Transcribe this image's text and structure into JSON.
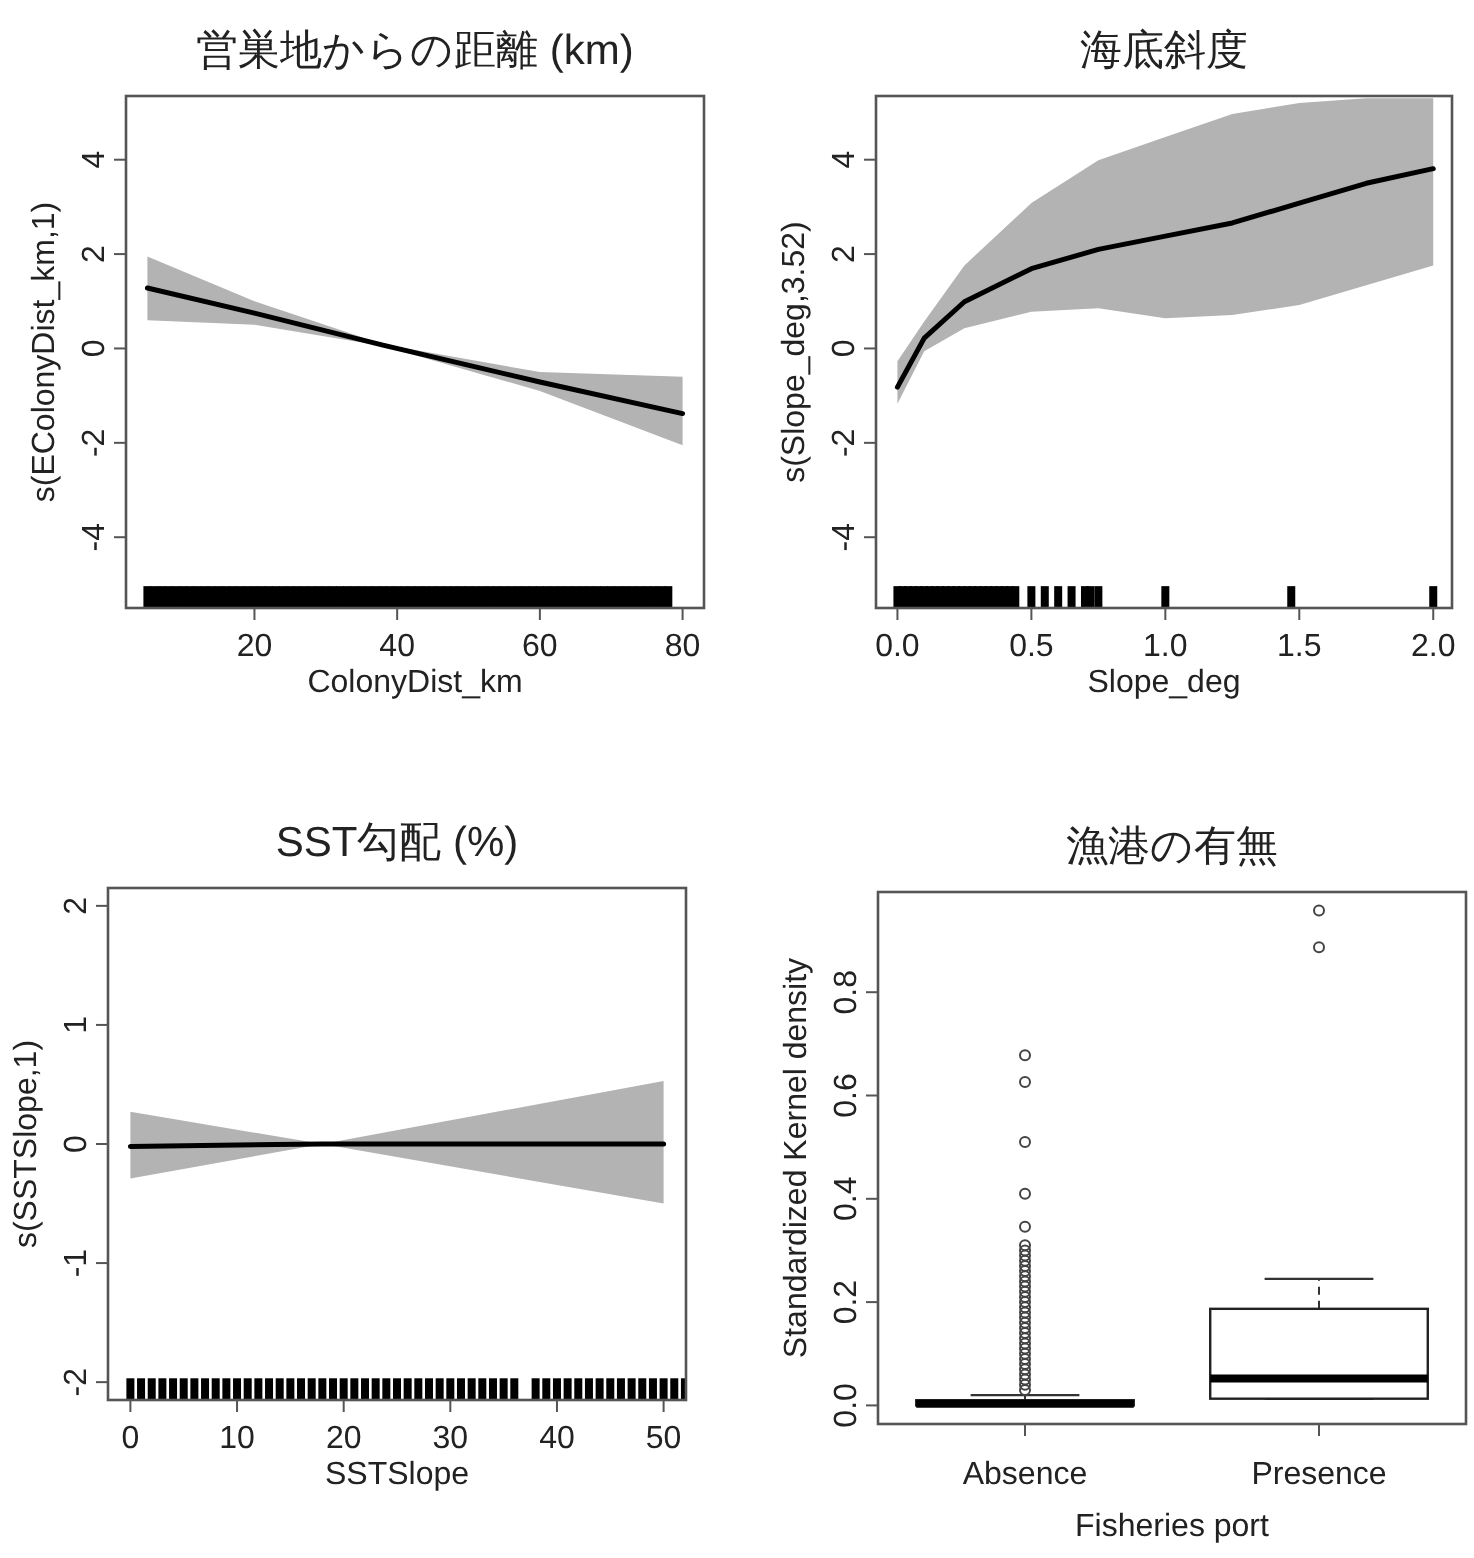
{
  "chart_data": [
    {
      "type": "line",
      "title": "営巣地からの距離 (km)",
      "xlabel": "ColonyDist_km",
      "ylabel": "s(EColonyDist_km,1)",
      "xlim": [
        2,
        83
      ],
      "xticks": [
        20,
        40,
        60,
        80
      ],
      "ylim": [
        -5.5,
        5.35
      ],
      "yticks": [
        -4,
        -2,
        0,
        2,
        4
      ],
      "series": [
        {
          "type": "line",
          "color": "#000000",
          "x": [
            5,
            20,
            38,
            60,
            80
          ],
          "values": [
            1.28,
            0.75,
            0.07,
            -0.71,
            -1.38
          ],
          "lower": [
            0.6,
            0.5,
            0.05,
            -0.9,
            -2.05
          ],
          "upper": [
            1.95,
            1.0,
            0.09,
            -0.5,
            -0.6
          ]
        },
        {
          "type": "scatter",
          "marker": "square",
          "color": "#000000",
          "x": [
            5,
            6,
            7,
            8,
            9,
            10,
            11,
            12,
            13,
            14,
            15,
            16,
            17,
            18,
            19,
            20,
            21,
            22,
            23,
            24,
            25,
            26,
            27,
            28,
            29,
            30,
            31,
            32,
            33,
            34,
            35,
            36,
            37,
            38,
            39,
            40,
            41,
            42,
            43,
            44,
            45,
            46,
            47,
            48,
            49,
            50,
            51,
            52,
            53,
            54,
            55,
            56,
            57,
            58,
            59,
            60,
            61,
            62,
            63,
            64,
            65,
            66,
            67,
            68,
            69,
            70,
            71,
            72,
            73,
            74,
            75,
            76,
            77,
            78
          ],
          "values": [
            -5.27,
            -5.27,
            -5.27,
            -5.27,
            -5.27,
            -5.27,
            -5.27,
            -5.27,
            -5.27,
            -5.27,
            -5.27,
            -5.27,
            -5.27,
            -5.27,
            -5.27,
            -5.27,
            -5.27,
            -5.27,
            -5.27,
            -5.27,
            -5.27,
            -5.27,
            -5.27,
            -5.27,
            -5.27,
            -5.27,
            -5.27,
            -5.27,
            -5.27,
            -5.27,
            -5.27,
            -5.27,
            -5.27,
            -5.27,
            -5.27,
            -5.27,
            -5.27,
            -5.27,
            -5.27,
            -5.27,
            -5.27,
            -5.27,
            -5.27,
            -5.27,
            -5.27,
            -5.27,
            -5.27,
            -5.27,
            -5.27,
            -5.27,
            -5.27,
            -5.27,
            -5.27,
            -5.27,
            -5.27,
            -5.27,
            -5.27,
            -5.27,
            -5.27,
            -5.27,
            -5.27,
            -5.27,
            -5.27,
            -5.27,
            -5.27,
            -5.27,
            -5.27,
            -5.27,
            -5.27,
            -5.27,
            -5.27,
            -5.27,
            -5.27,
            -5.27
          ]
        }
      ]
    },
    {
      "type": "line",
      "title": "海底斜度",
      "xlabel": "Slope_deg",
      "ylabel": "s(Slope_deg,3.52)",
      "xlim": [
        -0.08,
        2.07
      ],
      "xticks": [
        {
          "value": 0,
          "label": "0.0"
        },
        0.5,
        {
          "value": 1,
          "label": "1.0"
        },
        1.5,
        {
          "value": 2,
          "label": "2.0"
        }
      ],
      "ylim": [
        -5.5,
        5.35
      ],
      "yticks": [
        -4,
        -2,
        0,
        2,
        4
      ],
      "series": [
        {
          "type": "line",
          "color": "#000000",
          "x": [
            0,
            0.1,
            0.25,
            0.5,
            0.75,
            1.0,
            1.25,
            1.5,
            1.75,
            2.0
          ],
          "values": [
            -0.82,
            0.22,
            0.99,
            1.69,
            2.1,
            2.38,
            2.66,
            3.08,
            3.5,
            3.81
          ],
          "lower": [
            -1.17,
            -0.06,
            0.43,
            0.78,
            0.85,
            0.64,
            0.71,
            0.92,
            1.34,
            1.76
          ],
          "upper": [
            -0.27,
            0.57,
            1.76,
            3.08,
            3.99,
            4.48,
            4.97,
            5.2,
            5.3,
            5.3
          ]
        },
        {
          "type": "scatter",
          "marker": "square",
          "color": "#000000",
          "x": [
            0,
            0.02,
            0.04,
            0.06,
            0.08,
            0.1,
            0.12,
            0.14,
            0.16,
            0.18,
            0.2,
            0.22,
            0.24,
            0.26,
            0.28,
            0.3,
            0.32,
            0.34,
            0.36,
            0.38,
            0.4,
            0.42,
            0.44,
            0.5,
            0.55,
            0.6,
            0.65,
            0.7,
            0.72,
            0.75,
            1.0,
            1.47,
            2.0
          ],
          "values": [
            -5.27,
            -5.27,
            -5.27,
            -5.27,
            -5.27,
            -5.27,
            -5.27,
            -5.27,
            -5.27,
            -5.27,
            -5.27,
            -5.27,
            -5.27,
            -5.27,
            -5.27,
            -5.27,
            -5.27,
            -5.27,
            -5.27,
            -5.27,
            -5.27,
            -5.27,
            -5.27,
            -5.27,
            -5.27,
            -5.27,
            -5.27,
            -5.27,
            -5.27,
            -5.27,
            -5.27,
            -5.27,
            -5.27
          ]
        }
      ]
    },
    {
      "type": "line",
      "title": "SST勾配 (%)",
      "xlabel": "SSTSlope",
      "ylabel": "s(SSTSlope,1)",
      "xlim": [
        -2.1,
        52.1
      ],
      "xticks": [
        0,
        10,
        20,
        30,
        40,
        50
      ],
      "ylim": [
        -2.15,
        2.15
      ],
      "yticks": [
        -2,
        -1,
        0,
        1,
        2
      ],
      "series": [
        {
          "type": "line",
          "color": "#000000",
          "x": [
            0,
            18,
            50
          ],
          "values": [
            -0.02,
            0,
            0
          ],
          "lower": [
            -0.29,
            0,
            -0.5
          ],
          "upper": [
            0.27,
            0,
            0.53
          ]
        },
        {
          "type": "scatter",
          "marker": "square",
          "color": "#000000",
          "x": [
            0,
            1,
            2,
            3,
            4,
            5,
            6,
            7,
            8,
            9,
            10,
            11,
            12,
            13,
            14,
            15,
            16,
            17,
            18,
            19,
            20,
            21,
            22,
            23,
            24,
            25,
            26,
            27,
            28,
            29,
            30,
            31,
            32,
            33,
            34,
            35,
            36,
            38,
            39,
            40,
            41,
            42,
            43,
            44,
            45,
            46,
            47,
            48,
            49,
            50,
            51,
            52
          ],
          "values": [
            -2.06,
            -2.06,
            -2.06,
            -2.06,
            -2.06,
            -2.06,
            -2.06,
            -2.06,
            -2.06,
            -2.06,
            -2.06,
            -2.06,
            -2.06,
            -2.06,
            -2.06,
            -2.06,
            -2.06,
            -2.06,
            -2.06,
            -2.06,
            -2.06,
            -2.06,
            -2.06,
            -2.06,
            -2.06,
            -2.06,
            -2.06,
            -2.06,
            -2.06,
            -2.06,
            -2.06,
            -2.06,
            -2.06,
            -2.06,
            -2.06,
            -2.06,
            -2.06,
            -2.06,
            -2.06,
            -2.06,
            -2.06,
            -2.06,
            -2.06,
            -2.06,
            -2.06,
            -2.06,
            -2.06,
            -2.06,
            -2.06,
            -2.06,
            -2.06,
            -2.06
          ]
        }
      ]
    },
    {
      "type": "box",
      "title": "漁港の有無",
      "xlabel": "Fisheries port",
      "ylabel": "Standardized Kernel density",
      "categories": [
        "Absence",
        "Presence"
      ],
      "ylim": [
        -0.036,
        0.994
      ],
      "yticks": [
        {
          "value": 0,
          "label": "0.0"
        },
        0.2,
        0.4,
        0.6,
        0.8
      ],
      "boxes": [
        {
          "low": 0,
          "q1": 0,
          "median": 0.003,
          "q3": 0.01,
          "high": 0.02,
          "outliers": [
            0.03,
            0.04,
            0.05,
            0.06,
            0.07,
            0.08,
            0.09,
            0.1,
            0.11,
            0.12,
            0.13,
            0.14,
            0.15,
            0.16,
            0.17,
            0.18,
            0.19,
            0.2,
            0.21,
            0.22,
            0.23,
            0.24,
            0.25,
            0.26,
            0.27,
            0.28,
            0.29,
            0.3,
            0.31,
            0.346,
            0.41,
            0.51,
            0.626,
            0.678
          ]
        },
        {
          "low": 0.013,
          "q1": 0.013,
          "median": 0.052,
          "q3": 0.187,
          "high": 0.245,
          "outliers": [
            0.887,
            0.958
          ]
        }
      ]
    }
  ]
}
